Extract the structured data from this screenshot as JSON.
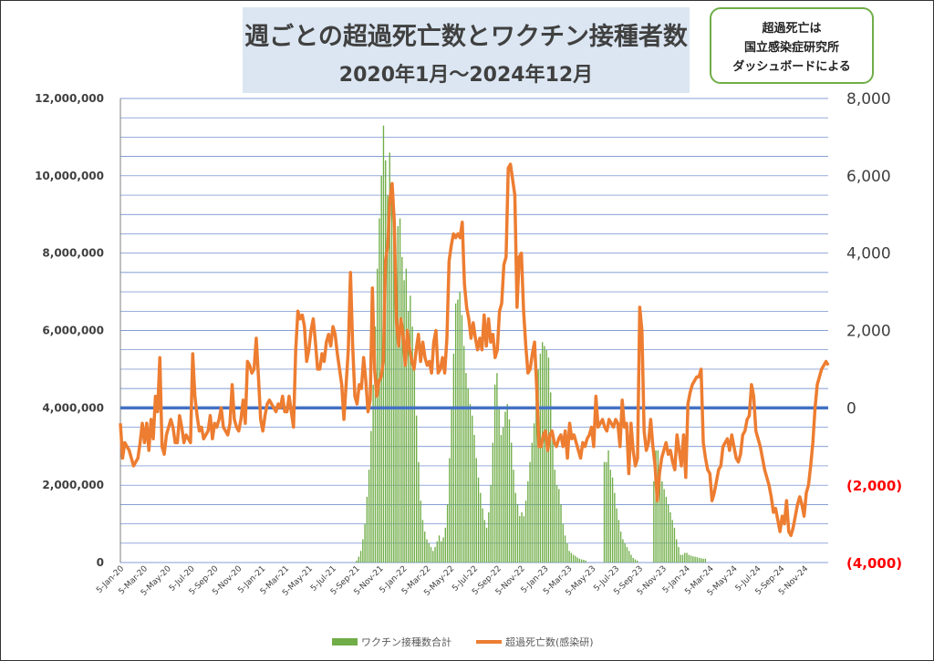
{
  "title": {
    "line1": "週ごとの超過死亡数とワクチン接種者数",
    "line2": "2020年1月～2024年12月"
  },
  "note": {
    "lines": [
      "超過死亡は",
      "国立感染症研究所",
      "ダッシュボードによる"
    ]
  },
  "colors": {
    "vaccine": "#70ad47",
    "excess": "#ed7d31",
    "zero_line": "#4472c4",
    "grid": "#5b7dc8",
    "negative_label": "#ff0000"
  },
  "chart_data": {
    "type": "bar",
    "x_tick_labels": [
      "5-Jan-20",
      "5-Mar-20",
      "5-May-20",
      "5-Jul-20",
      "5-Sep-20",
      "5-Nov-20",
      "5-Jan-21",
      "5-Mar-21",
      "5-May-21",
      "5-Jul-21",
      "5-Sep-21",
      "5-Nov-21",
      "5-Jan-22",
      "5-Mar-22",
      "5-May-22",
      "5-Jul-22",
      "5-Sep-22",
      "5-Nov-22",
      "5-Jan-23",
      "5-Mar-23",
      "5-May-23",
      "5-Jul-23",
      "5-Sep-23",
      "5-Nov-23",
      "5-Jan-24",
      "5-Mar-24",
      "5-May-24",
      "5-Jul-24",
      "5-Sep-24",
      "5-Nov-24"
    ],
    "y_left": {
      "ylim": [
        0,
        12000000
      ],
      "ticks": [
        0,
        2000000,
        4000000,
        6000000,
        8000000,
        10000000,
        12000000
      ],
      "tick_labels": [
        "0",
        "2,000,000",
        "4,000,000",
        "6,000,000",
        "8,000,000",
        "10,000,000",
        "12,000,000"
      ]
    },
    "y_right": {
      "ylim": [
        -4000,
        8000
      ],
      "ticks": [
        -4000,
        -2000,
        0,
        2000,
        4000,
        6000,
        8000
      ],
      "tick_labels": [
        "(4,000)",
        "(2,000)",
        "0",
        "2,000",
        "4,000",
        "6,000",
        "8,000"
      ]
    },
    "grid": true,
    "legend_position": "bottom-center",
    "series": [
      {
        "name": "ワクチン接種数合計",
        "type": "bar",
        "axis": "left",
        "values": [
          0,
          0,
          0,
          0,
          0,
          0,
          0,
          0,
          0,
          0,
          0,
          0,
          0,
          0,
          0,
          0,
          0,
          0,
          0,
          0,
          0,
          0,
          0,
          0,
          0,
          0,
          0,
          0,
          0,
          0,
          0,
          0,
          0,
          0,
          0,
          0,
          0,
          0,
          0,
          0,
          0,
          0,
          0,
          0,
          0,
          0,
          0,
          0,
          0,
          0,
          0,
          0,
          0,
          0,
          0,
          0,
          0,
          0,
          0,
          0,
          0,
          0,
          0,
          0,
          0,
          0,
          0,
          0,
          0,
          0,
          0,
          0,
          0,
          0,
          0,
          0,
          0,
          0,
          0,
          0,
          0,
          0,
          0,
          0,
          0,
          0,
          0,
          0,
          0,
          0,
          0,
          0,
          0,
          0,
          0,
          0,
          0,
          0,
          0,
          0,
          0,
          0,
          0,
          0,
          0,
          0,
          0,
          0,
          0,
          0,
          0,
          0,
          0,
          0,
          50000,
          150000,
          300000,
          600000,
          1000000,
          1700000,
          2400000,
          3400000,
          4600000,
          6100000,
          7600000,
          8900000,
          10000000,
          11300000,
          10400000,
          9500000,
          10600000,
          9400000,
          8400000,
          7200000,
          8700000,
          8900000,
          7900000,
          7300000,
          7600000,
          6500000,
          6900000,
          6100000,
          5200000,
          3800000,
          2600000,
          1600000,
          1100000,
          800000,
          600000,
          500000,
          400000,
          300000,
          400000,
          550000,
          700000,
          550000,
          650000,
          900000,
          1500000,
          2700000,
          4000000,
          5400000,
          6700000,
          6800000,
          7000000,
          6400000,
          5600000,
          4900000,
          4500000,
          4100000,
          3800000,
          3300000,
          2700000,
          2200000,
          1800000,
          1400000,
          1100000,
          900000,
          1300000,
          2000000,
          3100000,
          4600000,
          4900000,
          4000000,
          3300000,
          3500000,
          3900000,
          4100000,
          3700000,
          3100000,
          2400000,
          1800000,
          1500000,
          1200000,
          1300000,
          1200000,
          1600000,
          2100000,
          2600000,
          3100000,
          3600000,
          4400000,
          5000000,
          5400000,
          5700000,
          5600000,
          5500000,
          5300000,
          4400000,
          3300000,
          2400000,
          2000000,
          1900000,
          1500000,
          1000000,
          700000,
          500000,
          300000,
          250000,
          200000,
          170000,
          130000,
          100000,
          80000,
          70000,
          50000,
          0,
          0,
          0,
          0,
          0,
          0,
          0,
          0,
          2600000,
          2600000,
          2900000,
          2400000,
          2200000,
          1800000,
          1400000,
          1100000,
          800000,
          600000,
          500000,
          400000,
          300000,
          200000,
          120000,
          80000,
          50000,
          0,
          0,
          0,
          0,
          0,
          0,
          0,
          2100000,
          2900000,
          2900000,
          2400000,
          2100000,
          1900000,
          1700000,
          1500000,
          1300000,
          1100000,
          900000,
          600000,
          400000,
          200000,
          200000,
          250000,
          250000,
          200000,
          180000,
          160000,
          150000,
          140000,
          120000,
          110000,
          100000,
          100000,
          0,
          0,
          0,
          0,
          0,
          0,
          0,
          0,
          0,
          0,
          0,
          0,
          0,
          0,
          0,
          0,
          0,
          0,
          0,
          0,
          0,
          0,
          0,
          0,
          0,
          0,
          0,
          0,
          0,
          0,
          0,
          0,
          0,
          0,
          0,
          0,
          0,
          0,
          0,
          0,
          0,
          0,
          0,
          0,
          0,
          0,
          0,
          0,
          0,
          0,
          0,
          0,
          0,
          0,
          0,
          0,
          0,
          0,
          0
        ]
      },
      {
        "name": "超過死亡数(感染研)",
        "type": "line",
        "axis": "right",
        "values": [
          -400,
          -1300,
          -900,
          -1000,
          -1100,
          -1300,
          -1500,
          -1400,
          -1300,
          -900,
          -400,
          -900,
          -400,
          -1100,
          -300,
          -800,
          300,
          -100,
          1300,
          -1000,
          -1200,
          -700,
          -500,
          -300,
          -500,
          -900,
          -900,
          -200,
          -500,
          -900,
          -700,
          -800,
          -900,
          1400,
          300,
          -200,
          -600,
          -500,
          -800,
          -700,
          -600,
          -200,
          -800,
          -400,
          -500,
          -300,
          0,
          -500,
          -600,
          -700,
          -400,
          600,
          -300,
          -500,
          -600,
          -300,
          200,
          -400,
          1200,
          1100,
          900,
          1000,
          1800,
          800,
          -300,
          -600,
          -200,
          100,
          200,
          100,
          0,
          -100,
          100,
          0,
          300,
          -100,
          -100,
          300,
          -100,
          -500,
          1500,
          2500,
          2300,
          2400,
          2100,
          1200,
          1500,
          2000,
          2300,
          1700,
          1000,
          1000,
          1400,
          1200,
          1700,
          1900,
          1600,
          2100,
          1900,
          1400,
          1000,
          600,
          -300,
          600,
          1500,
          3500,
          1600,
          300,
          100,
          600,
          500,
          1300,
          700,
          -100,
          200,
          3100,
          1000,
          300,
          700,
          800,
          1200,
          3800,
          4200,
          5400,
          5800,
          4800,
          2200,
          1600,
          2300,
          1900,
          1100,
          2000,
          1500,
          1200,
          1000,
          1500,
          1900,
          1200,
          1700,
          1300,
          1100,
          1200,
          900,
          1700,
          2000,
          900,
          1000,
          1300,
          900,
          1800,
          3800,
          4200,
          4500,
          4400,
          4500,
          4400,
          4800,
          3200,
          2600,
          2300,
          1800,
          2200,
          1800,
          1500,
          1800,
          1500,
          2400,
          1600,
          2300,
          1700,
          1900,
          1300,
          1500,
          2500,
          2700,
          3700,
          3900,
          6200,
          6300,
          5900,
          5500,
          2600,
          3900,
          4000,
          2500,
          1600,
          900,
          1000,
          1400,
          1700,
          500,
          -1000,
          -1000,
          -700,
          -600,
          -1100,
          -700,
          -600,
          -900,
          -1000,
          -800,
          -700,
          -1000,
          -600,
          -1300,
          -400,
          -800,
          -700,
          -900,
          -1100,
          -1300,
          -900,
          -1000,
          -800,
          -700,
          -500,
          -1000,
          300,
          -500,
          -400,
          -300,
          -500,
          -600,
          -300,
          -400,
          -500,
          -300,
          -400,
          -1000,
          200,
          -500,
          -400,
          -1700,
          -400,
          -1100,
          -1500,
          -1300,
          2600,
          2000,
          -600,
          -1100,
          -900,
          -300,
          -1000,
          -1500,
          -2400,
          -1700,
          -1300,
          -1100,
          -900,
          -1200,
          -1100,
          -1400,
          -1600,
          -700,
          -1100,
          -1500,
          -700,
          -1800,
          100,
          400,
          600,
          700,
          800,
          800,
          1000,
          -900,
          -1300,
          -1600,
          -1700,
          -2400,
          -2200,
          -1900,
          -1600,
          -1500,
          -1000,
          -900,
          -800,
          -1100,
          -700,
          -1000,
          -1300,
          -1400,
          -1200,
          -700,
          -600,
          -300,
          -200,
          600,
          300,
          -600,
          -800,
          -1000,
          -1300,
          -1600,
          -1800,
          -2000,
          -2300,
          -2700,
          -2600,
          -2900,
          -3200,
          -2800,
          -3000,
          -2400,
          -3200,
          -3300,
          -3100,
          -2800,
          -2500,
          -2300,
          -2500,
          -2800,
          -2200,
          -2000,
          -1500,
          -900,
          0,
          600,
          800,
          1000,
          1100,
          1200,
          1100
        ]
      }
    ]
  }
}
